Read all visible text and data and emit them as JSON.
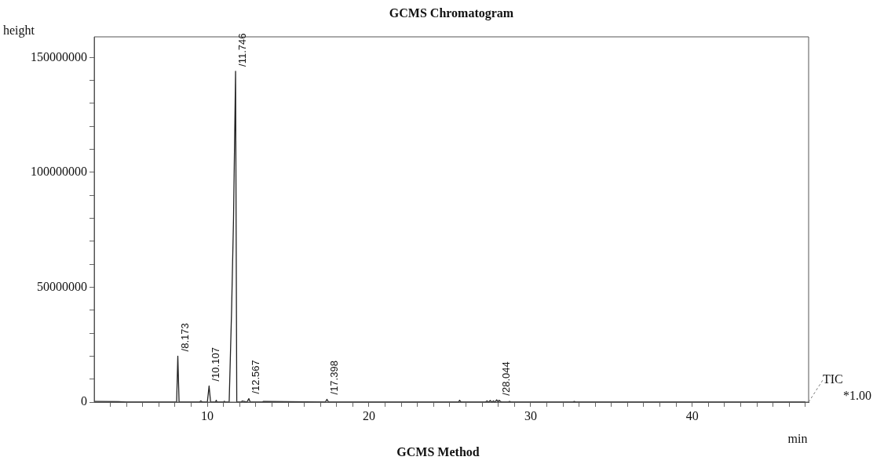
{
  "chart_data": {
    "type": "line",
    "title": "GCMS Chromatogram",
    "xlabel": "min",
    "ylabel": "height",
    "annotations": [
      {
        "text": "/8.173",
        "x": 8.173,
        "y": 20000000
      },
      {
        "text": "/10.107",
        "x": 10.107,
        "y": 7000000
      },
      {
        "text": "/11.746",
        "x": 11.746,
        "y": 144000000
      },
      {
        "text": "/12.567",
        "x": 12.567,
        "y": 1500000
      },
      {
        "text": "/17.398",
        "x": 17.398,
        "y": 1200000
      },
      {
        "text": "/28.044",
        "x": 28.044,
        "y": 800000
      },
      "TIC",
      "*1.00",
      "GCMS Method"
    ],
    "series": [
      {
        "color": "#222222",
        "x": [
          3.0,
          4.5,
          5.0,
          8.1,
          8.173,
          8.25,
          9.5,
          9.6,
          9.7,
          10.0,
          10.107,
          10.2,
          10.5,
          10.55,
          10.6,
          11.0,
          11.05,
          11.1,
          11.35,
          11.5,
          11.62,
          11.746,
          11.82,
          12.1,
          12.15,
          12.45,
          12.567,
          12.65,
          13.4,
          13.45,
          17.3,
          17.398,
          17.5,
          25.55,
          25.6,
          25.7,
          27.2,
          27.3,
          27.4,
          27.5,
          27.6,
          27.7,
          27.8,
          27.9,
          28.0,
          28.044,
          28.2,
          28.6,
          28.7,
          28.8,
          32.6,
          32.7,
          32.8,
          47.0
        ],
        "values": [
          300000,
          200000,
          0,
          0,
          20000000,
          0,
          0,
          500000,
          0,
          0,
          7000000,
          0,
          0,
          800000,
          0,
          0,
          400000,
          0,
          0,
          40000000,
          80000000,
          144000000,
          0,
          0,
          500000,
          0,
          1500000,
          0,
          0,
          300000,
          0,
          1200000,
          0,
          0,
          800000,
          0,
          0,
          500000,
          0,
          700000,
          0,
          500000,
          0,
          1000000,
          0,
          800000,
          0,
          0,
          300000,
          0,
          0,
          300000,
          0,
          0
        ]
      }
    ],
    "xlim": [
      3,
      47.2
    ],
    "xticks": [
      {
        "value": 4,
        "label": null
      },
      {
        "value": 5,
        "label": null
      },
      {
        "value": 6,
        "label": null
      },
      {
        "value": 7,
        "label": null
      },
      {
        "value": 8,
        "label": null
      },
      {
        "value": 9,
        "label": null
      },
      10,
      {
        "value": 11,
        "label": null
      },
      {
        "value": 12,
        "label": null
      },
      {
        "value": 13,
        "label": null
      },
      {
        "value": 14,
        "label": null
      },
      {
        "value": 15,
        "label": null
      },
      {
        "value": 16,
        "label": null
      },
      {
        "value": 17,
        "label": null
      },
      {
        "value": 18,
        "label": null
      },
      {
        "value": 19,
        "label": null
      },
      20,
      {
        "value": 21,
        "label": null
      },
      {
        "value": 22,
        "label": null
      },
      {
        "value": 23,
        "label": null
      },
      {
        "value": 24,
        "label": null
      },
      {
        "value": 25,
        "label": null
      },
      {
        "value": 26,
        "label": null
      },
      {
        "value": 27,
        "label": null
      },
      {
        "value": 28,
        "label": null
      },
      {
        "value": 29,
        "label": null
      },
      30,
      {
        "value": 31,
        "label": null
      },
      {
        "value": 32,
        "label": null
      },
      {
        "value": 33,
        "label": null
      },
      {
        "value": 34,
        "label": null
      },
      {
        "value": 35,
        "label": null
      },
      {
        "value": 36,
        "label": null
      },
      {
        "value": 37,
        "label": null
      },
      {
        "value": 38,
        "label": null
      },
      {
        "value": 39,
        "label": null
      },
      40,
      {
        "value": 41,
        "label": null
      },
      {
        "value": 42,
        "label": null
      },
      {
        "value": 43,
        "label": null
      },
      {
        "value": 44,
        "label": null
      },
      {
        "value": 45,
        "label": null
      },
      {
        "value": 46,
        "label": null
      },
      {
        "value": 47,
        "label": null
      }
    ],
    "ylim": [
      0,
      159000000
    ],
    "yticks": [
      0,
      {
        "value": 10000000,
        "label": null
      },
      {
        "value": 20000000,
        "label": null
      },
      {
        "value": 30000000,
        "label": null
      },
      {
        "value": 40000000,
        "label": null
      },
      50000000,
      {
        "value": 60000000,
        "label": null
      },
      {
        "value": 70000000,
        "label": null
      },
      {
        "value": 80000000,
        "label": null
      },
      {
        "value": 90000000,
        "label": null
      },
      100000000,
      {
        "value": 110000000,
        "label": null
      },
      {
        "value": 120000000,
        "label": null
      },
      {
        "value": 130000000,
        "label": null
      },
      {
        "value": 140000000,
        "label": null
      },
      150000000
    ],
    "grid": false,
    "legend": false,
    "marker": "none",
    "line_style": "solid"
  }
}
